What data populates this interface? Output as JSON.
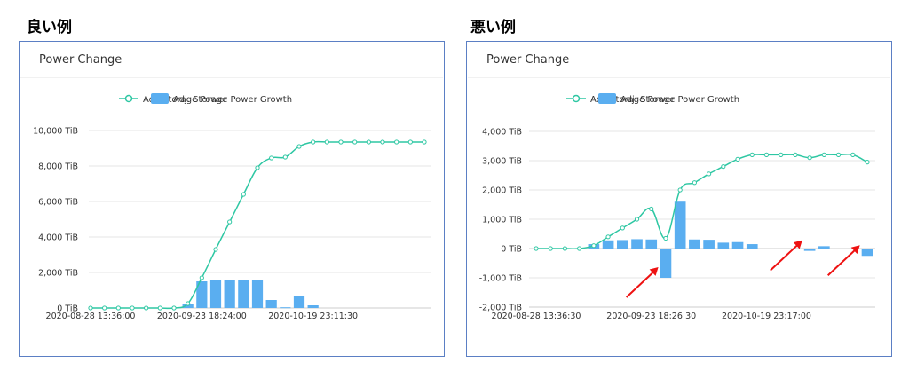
{
  "captions": {
    "good": "良い例",
    "bad": "悪い例"
  },
  "colors": {
    "line": "#2ec7a3",
    "bar": "#5aaef0",
    "grid": "#e6e6e6",
    "axis": "#cccccc",
    "arrow": "#ee1111",
    "border": "#5b7fc4"
  },
  "chart_data": [
    {
      "type": "bar+line",
      "title": "Power Change",
      "legend": [
        "Adj. Storage Power",
        "Adj. Storage Power Growth"
      ],
      "legend_position": "top-center",
      "unit": "TiB",
      "ylim": [
        0,
        10000
      ],
      "yticks": [
        0,
        2000,
        4000,
        6000,
        8000,
        10000
      ],
      "ytick_labels": [
        "0 TiB",
        "2,000 TiB",
        "4,000 TiB",
        "6,000 TiB",
        "8,000 TiB",
        "10,000 TiB"
      ],
      "xtick_labels": [
        "2020-08-28 13:36:00",
        "2020-09-23 18:24:00",
        "2020-10-19 23:11:30"
      ],
      "grid": true,
      "series": [
        {
          "name": "Adj. Storage Power",
          "type": "line",
          "values": [
            0,
            0,
            0,
            0,
            0,
            0,
            0,
            250,
            1700,
            3300,
            4850,
            6400,
            7900,
            8450,
            8500,
            9100,
            9350,
            9350,
            9350,
            9350,
            9350,
            9350,
            9350,
            9350,
            9350
          ]
        },
        {
          "name": "Adj. Storage Power Growth",
          "type": "bar",
          "values": [
            0,
            0,
            0,
            0,
            0,
            0,
            0,
            250,
            1500,
            1600,
            1550,
            1600,
            1550,
            450,
            40,
            700,
            150,
            0,
            0,
            0,
            0,
            0,
            0,
            0,
            0
          ]
        }
      ]
    },
    {
      "type": "bar+line",
      "title": "Power Change",
      "legend": [
        "Adj. Storage Power",
        "Adj. Storage Power Growth"
      ],
      "legend_position": "top-center",
      "unit": "TiB",
      "ylim": [
        -2000,
        4000
      ],
      "yticks": [
        -2000,
        -1000,
        0,
        1000,
        2000,
        3000,
        4000
      ],
      "ytick_labels": [
        "-2,000 TiB",
        "-1,000 TiB",
        "0 TiB",
        "1,000 TiB",
        "2,000 TiB",
        "3,000 TiB",
        "4,000 TiB"
      ],
      "xtick_labels": [
        "2020-08-28 13:36:30",
        "2020-09-23 18:26:30",
        "2020-10-19 23:17:00"
      ],
      "grid": true,
      "series": [
        {
          "name": "Adj. Storage Power",
          "type": "line",
          "values": [
            0,
            0,
            0,
            0,
            100,
            400,
            700,
            1000,
            1350,
            350,
            2000,
            2250,
            2550,
            2800,
            3050,
            3200,
            3200,
            3200,
            3200,
            3100,
            3200,
            3200,
            3200,
            2950
          ]
        },
        {
          "name": "Adj. Storage Power Growth",
          "type": "bar",
          "values": [
            0,
            0,
            0,
            0,
            150,
            280,
            290,
            320,
            310,
            -1000,
            1600,
            310,
            300,
            200,
            220,
            150,
            0,
            0,
            0,
            -80,
            80,
            0,
            0,
            -250
          ]
        }
      ],
      "annotations": [
        {
          "type": "arrow",
          "target_index": 9
        },
        {
          "type": "arrow",
          "target_index": 19
        },
        {
          "type": "arrow",
          "target_index": 23
        }
      ]
    }
  ]
}
